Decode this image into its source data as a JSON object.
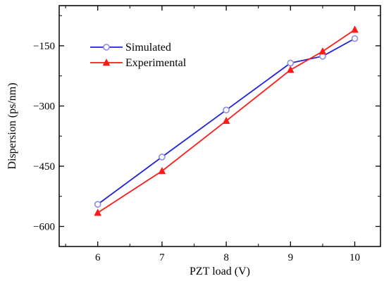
{
  "chart_data": {
    "type": "line",
    "title": "",
    "xlabel": "PZT load (V)",
    "ylabel": "Dispersion (ps/nm)",
    "xlim": [
      5.4,
      10.4
    ],
    "ylim": [
      -650,
      -50
    ],
    "xticks": [
      6,
      7,
      8,
      9,
      10
    ],
    "yticks": [
      -600,
      -450,
      -300,
      -150
    ],
    "xtick_labels": [
      "6",
      "7",
      "8",
      "9",
      "10"
    ],
    "ytick_labels": [
      "−600",
      "−450",
      "−300",
      "−150"
    ],
    "grid": false,
    "legend_position": "top-left",
    "series": [
      {
        "name": "Simulated",
        "color": "#2020e0",
        "marker": "open-circle",
        "x": [
          6,
          7,
          8,
          9,
          9.5,
          10
        ],
        "y": [
          -545,
          -427,
          -310,
          -193,
          -176,
          -132
        ]
      },
      {
        "name": "Experimental",
        "color": "#ff1a1a",
        "marker": "filled-triangle",
        "x": [
          6,
          7,
          8,
          9,
          9.5,
          10
        ],
        "y": [
          -566,
          -462,
          -337,
          -210,
          -164,
          -110
        ]
      }
    ]
  }
}
